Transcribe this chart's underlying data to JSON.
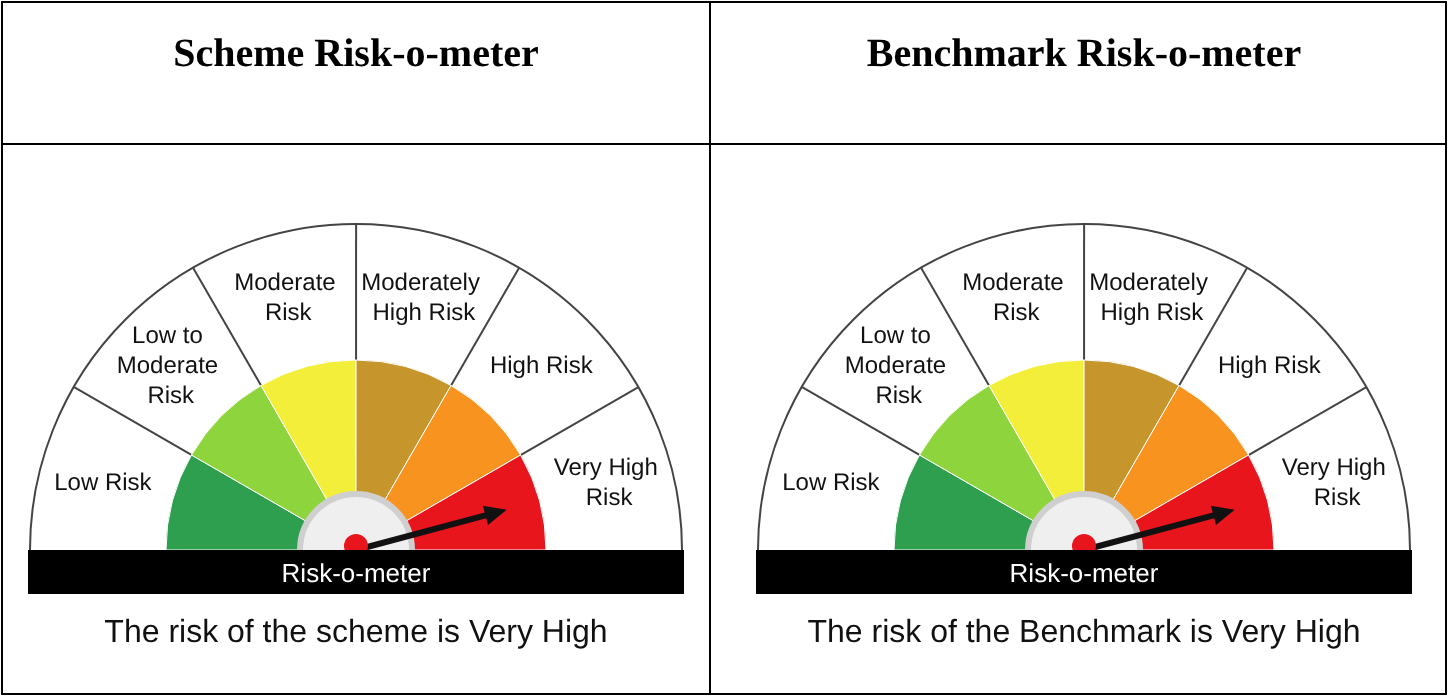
{
  "chart_data": [
    {
      "type": "donut",
      "title": "Scheme Risk-o-meter",
      "categories": [
        "Low Risk",
        "Low to Moderate Risk",
        "Moderate Risk",
        "Moderately High Risk",
        "High Risk",
        "Very High Risk"
      ],
      "values": [
        16.67,
        16.67,
        16.67,
        16.67,
        16.66,
        16.66
      ],
      "colors": [
        "#2e9e4f",
        "#8ed43c",
        "#f3ee3a",
        "#c6962c",
        "#f7931e",
        "#e8151c"
      ],
      "needle": "Very High Risk",
      "annotations": [
        "Risk-o-meter",
        "The risk of the scheme is Very High"
      ]
    },
    {
      "type": "donut",
      "title": "Benchmark Risk-o-meter",
      "categories": [
        "Low Risk",
        "Low to Moderate Risk",
        "Moderate Risk",
        "Moderately High Risk",
        "High Risk",
        "Very High Risk"
      ],
      "values": [
        16.67,
        16.67,
        16.67,
        16.67,
        16.66,
        16.66
      ],
      "colors": [
        "#2e9e4f",
        "#8ed43c",
        "#f3ee3a",
        "#c6962c",
        "#f7931e",
        "#e8151c"
      ],
      "needle": "Very High Risk",
      "annotations": [
        "Risk-o-meter",
        "The risk of the Benchmark is Very High"
      ]
    }
  ]
}
